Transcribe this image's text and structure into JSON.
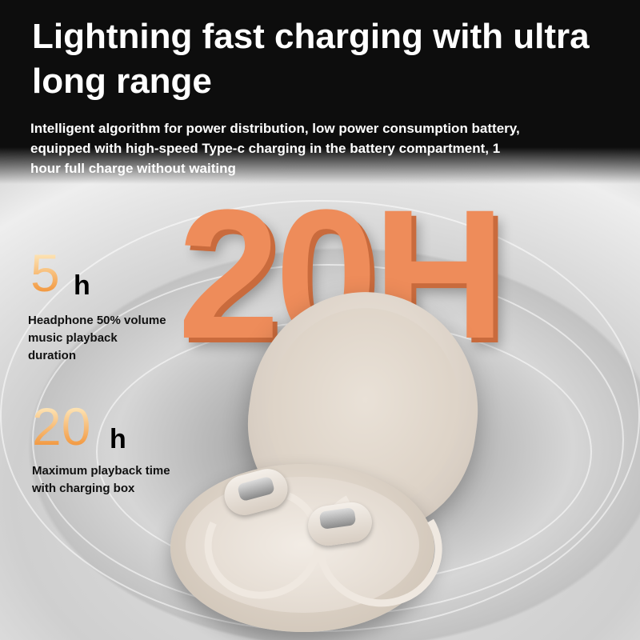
{
  "header": {
    "title": "Lightning fast charging with ultra long range",
    "description": "Intelligent algorithm for power distribution, low power consumption battery, equipped with high-speed Type-c charging in the battery compartment, 1 hour full charge without waiting"
  },
  "hero_graphic": {
    "text": "20H",
    "color": "#ee8c5a"
  },
  "stats": [
    {
      "value": "5",
      "unit": "h",
      "caption": "Headphone 50% volume music playback duration"
    },
    {
      "value": "20",
      "unit": "h",
      "caption": "Maximum playback time with charging box"
    }
  ],
  "colors": {
    "background_top": "#0d0d0d",
    "accent_orange": "#f08a2a",
    "text_light": "#ffffff",
    "text_dark": "#111111"
  }
}
